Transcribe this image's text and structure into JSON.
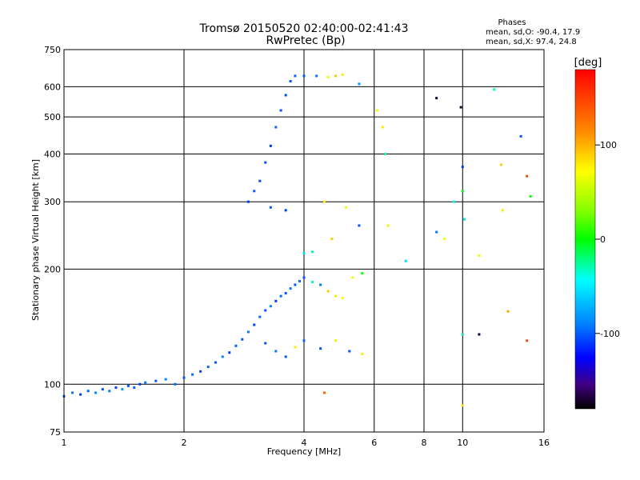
{
  "chart_data": {
    "type": "scatter",
    "title": "Tromsø 20150520 02:40:00-02:41:43",
    "subtitle": "RwPretec (Bp)",
    "phases": {
      "heading": "Phases",
      "o_line": "mean, sd,O: -90.4, 17.9",
      "x_line": "mean, sd,X:  97.4, 24.8"
    },
    "xlabel": "Frequency [MHz]",
    "ylabel": "Stationary phase Virtual Height [km]",
    "x_scale": "log",
    "y_scale": "log",
    "xlim": [
      1,
      16
    ],
    "ylim": [
      75,
      750
    ],
    "x_ticks": [
      1,
      2,
      4,
      6,
      8,
      10,
      16
    ],
    "x_tick_labels": [
      "1",
      "2",
      "4",
      "6",
      "8",
      "10",
      "16"
    ],
    "y_ticks": [
      75,
      100,
      200,
      300,
      400,
      500,
      600,
      750
    ],
    "y_tick_labels": [
      "75",
      "100",
      "200",
      "300",
      "400",
      "500",
      "600",
      "750"
    ],
    "grid": true,
    "colorbar": {
      "label": "[deg]",
      "range": [
        -180,
        180
      ],
      "ticks": [
        100,
        0,
        -100
      ],
      "tick_labels": [
        "100",
        "0",
        "-100"
      ]
    },
    "series": [
      {
        "values": [
          {
            "x": 1.0,
            "y": 93,
            "phase": -100
          },
          {
            "x": 1.05,
            "y": 95,
            "phase": -90
          },
          {
            "x": 1.1,
            "y": 94,
            "phase": -110
          },
          {
            "x": 1.15,
            "y": 96,
            "phase": -95
          },
          {
            "x": 1.2,
            "y": 95,
            "phase": -85
          },
          {
            "x": 1.25,
            "y": 97,
            "phase": -100
          },
          {
            "x": 1.3,
            "y": 96,
            "phase": -90
          },
          {
            "x": 1.35,
            "y": 98,
            "phase": -105
          },
          {
            "x": 1.4,
            "y": 97,
            "phase": -80
          },
          {
            "x": 1.45,
            "y": 99,
            "phase": -100
          },
          {
            "x": 1.5,
            "y": 98,
            "phase": -95
          },
          {
            "x": 1.55,
            "y": 100,
            "phase": -110
          },
          {
            "x": 1.6,
            "y": 101,
            "phase": -90
          },
          {
            "x": 1.7,
            "y": 102,
            "phase": -100
          },
          {
            "x": 1.8,
            "y": 103,
            "phase": -85
          },
          {
            "x": 1.9,
            "y": 100,
            "phase": -95
          },
          {
            "x": 2.0,
            "y": 104,
            "phase": -100
          },
          {
            "x": 2.1,
            "y": 106,
            "phase": -90
          },
          {
            "x": 2.2,
            "y": 108,
            "phase": -105
          },
          {
            "x": 2.3,
            "y": 111,
            "phase": -95
          },
          {
            "x": 2.4,
            "y": 114,
            "phase": -100
          },
          {
            "x": 2.5,
            "y": 118,
            "phase": -85
          },
          {
            "x": 2.6,
            "y": 121,
            "phase": -110
          },
          {
            "x": 2.7,
            "y": 126,
            "phase": -95
          },
          {
            "x": 2.8,
            "y": 131,
            "phase": -100
          },
          {
            "x": 2.9,
            "y": 137,
            "phase": -90
          },
          {
            "x": 3.0,
            "y": 143,
            "phase": -105
          },
          {
            "x": 3.1,
            "y": 150,
            "phase": -95
          },
          {
            "x": 3.2,
            "y": 156,
            "phase": -100
          },
          {
            "x": 3.3,
            "y": 160,
            "phase": -85
          },
          {
            "x": 3.4,
            "y": 165,
            "phase": -110
          },
          {
            "x": 3.5,
            "y": 170,
            "phase": -95
          },
          {
            "x": 3.6,
            "y": 173,
            "phase": -100
          },
          {
            "x": 3.7,
            "y": 178,
            "phase": -90
          },
          {
            "x": 3.8,
            "y": 182,
            "phase": -100
          },
          {
            "x": 3.9,
            "y": 186,
            "phase": -95
          },
          {
            "x": 4.0,
            "y": 190,
            "phase": -100
          },
          {
            "x": 4.2,
            "y": 185,
            "phase": -30
          },
          {
            "x": 4.4,
            "y": 182,
            "phase": -90
          },
          {
            "x": 4.6,
            "y": 175,
            "phase": 120
          },
          {
            "x": 4.8,
            "y": 170,
            "phase": 110
          },
          {
            "x": 5.0,
            "y": 168,
            "phase": 105
          },
          {
            "x": 5.3,
            "y": 190,
            "phase": 100
          },
          {
            "x": 5.6,
            "y": 195,
            "phase": 30
          },
          {
            "x": 3.2,
            "y": 128,
            "phase": -100
          },
          {
            "x": 3.4,
            "y": 122,
            "phase": -90
          },
          {
            "x": 3.6,
            "y": 118,
            "phase": -100
          },
          {
            "x": 3.8,
            "y": 125,
            "phase": 110
          },
          {
            "x": 4.0,
            "y": 130,
            "phase": -95
          },
          {
            "x": 4.4,
            "y": 124,
            "phase": -100
          },
          {
            "x": 4.8,
            "y": 130,
            "phase": 110
          },
          {
            "x": 5.2,
            "y": 122,
            "phase": -100
          },
          {
            "x": 5.6,
            "y": 120,
            "phase": 110
          },
          {
            "x": 2.9,
            "y": 300,
            "phase": -110
          },
          {
            "x": 3.0,
            "y": 320,
            "phase": -100
          },
          {
            "x": 3.1,
            "y": 340,
            "phase": -105
          },
          {
            "x": 3.2,
            "y": 380,
            "phase": -100
          },
          {
            "x": 3.3,
            "y": 420,
            "phase": -110
          },
          {
            "x": 3.4,
            "y": 470,
            "phase": -95
          },
          {
            "x": 3.5,
            "y": 520,
            "phase": -100
          },
          {
            "x": 3.6,
            "y": 570,
            "phase": -105
          },
          {
            "x": 3.7,
            "y": 620,
            "phase": -100
          },
          {
            "x": 3.8,
            "y": 640,
            "phase": -95
          },
          {
            "x": 4.0,
            "y": 640,
            "phase": -100
          },
          {
            "x": 4.3,
            "y": 640,
            "phase": -90
          },
          {
            "x": 4.6,
            "y": 635,
            "phase": 100
          },
          {
            "x": 4.8,
            "y": 640,
            "phase": 120
          },
          {
            "x": 5.0,
            "y": 645,
            "phase": 110
          },
          {
            "x": 5.5,
            "y": 610,
            "phase": -80
          },
          {
            "x": 3.3,
            "y": 290,
            "phase": -100
          },
          {
            "x": 3.6,
            "y": 285,
            "phase": -110
          },
          {
            "x": 4.0,
            "y": 220,
            "phase": -60
          },
          {
            "x": 4.2,
            "y": 222,
            "phase": -20
          },
          {
            "x": 4.5,
            "y": 300,
            "phase": 110
          },
          {
            "x": 4.7,
            "y": 240,
            "phase": 120
          },
          {
            "x": 5.1,
            "y": 290,
            "phase": 100
          },
          {
            "x": 5.5,
            "y": 260,
            "phase": -100
          },
          {
            "x": 6.1,
            "y": 520,
            "phase": 100
          },
          {
            "x": 6.3,
            "y": 470,
            "phase": 110
          },
          {
            "x": 6.4,
            "y": 400,
            "phase": -20
          },
          {
            "x": 6.5,
            "y": 260,
            "phase": 110
          },
          {
            "x": 7.2,
            "y": 210,
            "phase": -60
          },
          {
            "x": 8.6,
            "y": 560,
            "phase": -160
          },
          {
            "x": 8.6,
            "y": 250,
            "phase": -90
          },
          {
            "x": 9.0,
            "y": 240,
            "phase": 100
          },
          {
            "x": 9.5,
            "y": 300,
            "phase": -40
          },
          {
            "x": 9.9,
            "y": 530,
            "phase": -160
          },
          {
            "x": 10.0,
            "y": 370,
            "phase": -110
          },
          {
            "x": 10.0,
            "y": 320,
            "phase": 20
          },
          {
            "x": 10.1,
            "y": 270,
            "phase": -60
          },
          {
            "x": 10.0,
            "y": 135,
            "phase": -20
          },
          {
            "x": 11.0,
            "y": 217,
            "phase": 100
          },
          {
            "x": 11.0,
            "y": 135,
            "phase": -160
          },
          {
            "x": 12.0,
            "y": 590,
            "phase": -30
          },
          {
            "x": 12.5,
            "y": 375,
            "phase": 120
          },
          {
            "x": 12.6,
            "y": 285,
            "phase": 110
          },
          {
            "x": 13.0,
            "y": 155,
            "phase": 130
          },
          {
            "x": 14.0,
            "y": 445,
            "phase": -100
          },
          {
            "x": 14.5,
            "y": 350,
            "phase": 160
          },
          {
            "x": 14.8,
            "y": 310,
            "phase": 30
          },
          {
            "x": 14.5,
            "y": 130,
            "phase": 160
          },
          {
            "x": 10.0,
            "y": 88,
            "phase": 110
          },
          {
            "x": 4.5,
            "y": 95,
            "phase": 150
          }
        ]
      }
    ]
  }
}
